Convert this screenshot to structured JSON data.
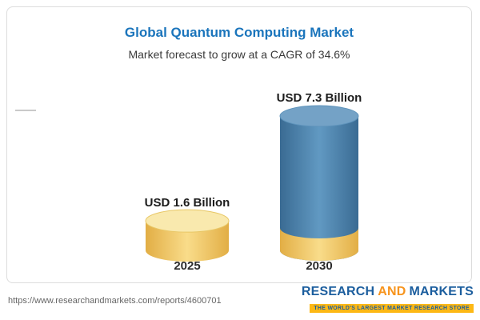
{
  "chart_data": {
    "type": "bar",
    "subtype": "3d-cylinder",
    "title": "Global Quantum Computing Market",
    "subtitle": "Market forecast to grow at a CAGR of 34.6%",
    "cagr_percent": 34.6,
    "unit": "USD Billion",
    "categories": [
      "2025",
      "2030"
    ],
    "values": [
      1.6,
      7.3
    ],
    "value_labels": [
      "USD 1.6 Billion",
      "USD 7.3 Billion"
    ],
    "legend": "none",
    "grid": false,
    "colors": {
      "title_blue": "#1B75BC",
      "gold_bar": "#F3CE63",
      "gold_bar_top": "#F9E9AE",
      "blue_bar": "#4E86B0",
      "blue_bar_top": "#74A2C6",
      "blue_bar_base_band": "#F3CE63"
    }
  },
  "footer": {
    "report_url": "https://www.researchandmarkets.com/reports/4600701",
    "logo": {
      "research": "RESEARCH",
      "and": "AND",
      "markets": "MARKETS",
      "tagline": "THE WORLD'S LARGEST MARKET RESEARCH STORE"
    }
  }
}
